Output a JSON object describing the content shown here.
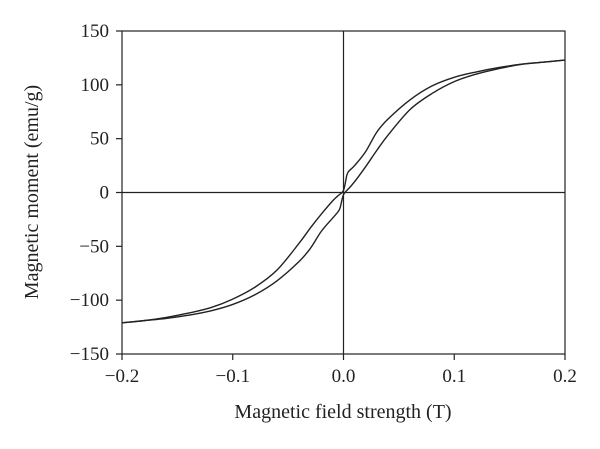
{
  "chart_data": {
    "type": "line",
    "title": "",
    "xlabel": "Magnetic field strength (T)",
    "ylabel": "Magnetic moment (emu/g)",
    "xlim": [
      -0.2,
      0.2
    ],
    "ylim": [
      -150,
      150
    ],
    "xticks": [
      -0.2,
      -0.1,
      0.0,
      0.1,
      0.2
    ],
    "xtick_labels": [
      "−0.2",
      "−0.1",
      "0.0",
      "0.1",
      "0.2"
    ],
    "yticks": [
      150,
      100,
      50,
      0,
      -50,
      -100,
      -150
    ],
    "ytick_labels": [
      "150",
      "100",
      "50",
      "0",
      "−50",
      "−100",
      "−150"
    ],
    "zero_lines": true,
    "grid": false,
    "legend": "none",
    "line_color": "#222222",
    "series": [
      {
        "x": [
          -0.2,
          -0.18,
          -0.16,
          -0.14,
          -0.12,
          -0.1,
          -0.08,
          -0.06,
          -0.04,
          -0.03,
          -0.02,
          -0.01,
          -0.005,
          0.0,
          0.003,
          0.005,
          0.01,
          0.02,
          0.03,
          0.04,
          0.06,
          0.08,
          0.1,
          0.12,
          0.14,
          0.16,
          0.18,
          0.2
        ],
        "values": [
          -121,
          -119,
          -116,
          -112,
          -107,
          -99,
          -88,
          -72,
          -47,
          -33,
          -20,
          -8,
          -3,
          2,
          16,
          20,
          25,
          38,
          56,
          68,
          86,
          99,
          107,
          112,
          116,
          119,
          121,
          123
        ]
      },
      {
        "x": [
          0.2,
          0.18,
          0.16,
          0.14,
          0.12,
          0.1,
          0.08,
          0.06,
          0.04,
          0.03,
          0.02,
          0.01,
          0.005,
          0.0,
          -0.003,
          -0.005,
          -0.01,
          -0.02,
          -0.03,
          -0.04,
          -0.06,
          -0.08,
          -0.1,
          -0.12,
          -0.14,
          -0.16,
          -0.18,
          -0.2
        ],
        "values": [
          123,
          121,
          119,
          115,
          110,
          103,
          92,
          77,
          53,
          39,
          24,
          10,
          4,
          -2,
          -14,
          -18,
          -24,
          -36,
          -52,
          -64,
          -82,
          -95,
          -104,
          -110,
          -114,
          -117,
          -119,
          -121
        ]
      }
    ]
  }
}
